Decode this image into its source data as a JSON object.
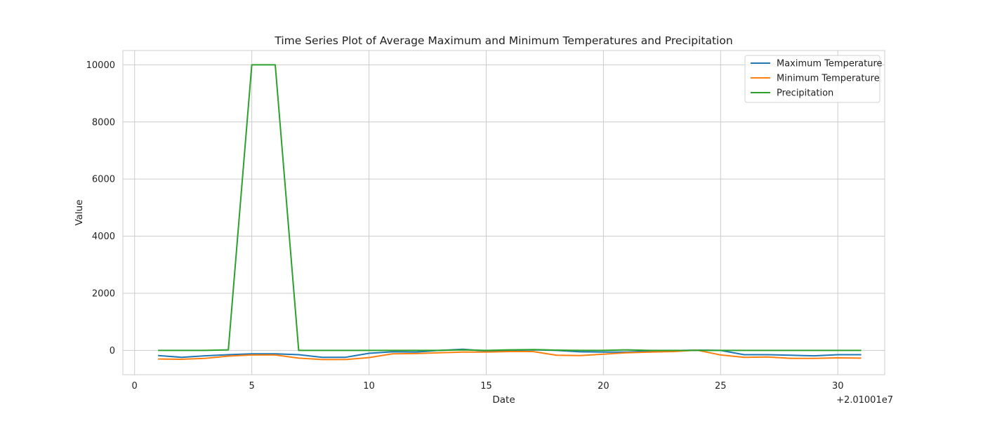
{
  "chart_data": {
    "type": "line",
    "title": "Time Series Plot of Average Maximum and Minimum Temperatures and Precipitation",
    "xlabel": "Date",
    "ylabel": "Value",
    "x_offset_label": "+2.01001e7",
    "xlim": [
      -0.5,
      32.0
    ],
    "ylim": [
      -850,
      10500
    ],
    "x_ticks": [
      0,
      5,
      10,
      15,
      20,
      25,
      30
    ],
    "y_ticks": [
      0,
      2000,
      4000,
      6000,
      8000,
      10000
    ],
    "grid": true,
    "legend_position": "top-right",
    "x": [
      1,
      2,
      3,
      4,
      5,
      6,
      7,
      8,
      9,
      10,
      11,
      12,
      13,
      14,
      15,
      16,
      17,
      18,
      19,
      20,
      21,
      22,
      23,
      24,
      25,
      26,
      27,
      28,
      29,
      30,
      31
    ],
    "series": [
      {
        "name": "Maximum Temperature",
        "color": "#1f77b4",
        "values": [
          -180,
          -240,
          -190,
          -150,
          -120,
          -120,
          -150,
          -240,
          -240,
          -100,
          -50,
          -60,
          0,
          40,
          -20,
          0,
          20,
          0,
          -50,
          -60,
          -60,
          -20,
          -10,
          10,
          0,
          -150,
          -150,
          -170,
          -190,
          -150,
          -150
        ]
      },
      {
        "name": "Minimum Temperature",
        "color": "#ff7f0e",
        "values": [
          -300,
          -310,
          -280,
          -200,
          -160,
          -160,
          -270,
          -320,
          -320,
          -250,
          -120,
          -110,
          -80,
          -60,
          -60,
          -40,
          -40,
          -170,
          -180,
          -130,
          -80,
          -60,
          -40,
          10,
          -160,
          -240,
          -230,
          -280,
          -280,
          -260,
          -270
        ]
      },
      {
        "name": "Precipitation",
        "color": "#2ca02c",
        "values": [
          0,
          0,
          0,
          20,
          10000,
          10000,
          0,
          0,
          0,
          0,
          0,
          0,
          0,
          20,
          0,
          20,
          30,
          10,
          0,
          0,
          20,
          0,
          0,
          0,
          0,
          0,
          0,
          0,
          0,
          0,
          0
        ]
      }
    ]
  }
}
